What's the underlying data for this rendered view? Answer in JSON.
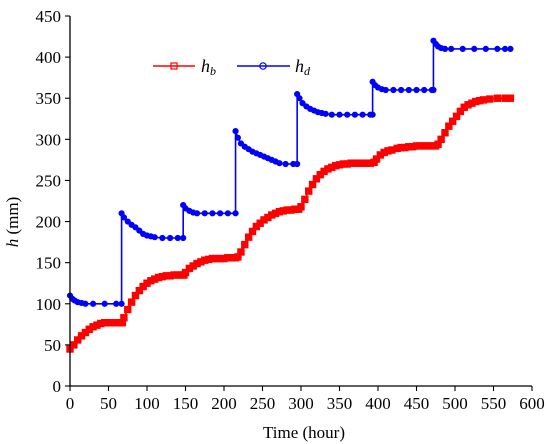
{
  "chart_data": {
    "type": "line",
    "title": "",
    "xlabel": "Time (hour)",
    "ylabel_symbol": "h",
    "ylabel_unit": " (mm)",
    "xlim": [
      0,
      600
    ],
    "ylim": [
      0,
      450
    ],
    "xticks": [
      0,
      50,
      100,
      150,
      200,
      250,
      300,
      350,
      400,
      450,
      500,
      550,
      600
    ],
    "yticks": [
      0,
      50,
      100,
      150,
      200,
      250,
      300,
      350,
      400,
      450
    ],
    "grid": false,
    "legend_position": "top-left",
    "series": [
      {
        "name_main": "h",
        "name_sub": "b",
        "color": "#ff0000",
        "marker": "square",
        "points": [
          [
            0,
            45
          ],
          [
            5,
            50
          ],
          [
            10,
            56
          ],
          [
            15,
            61
          ],
          [
            20,
            65
          ],
          [
            25,
            69
          ],
          [
            30,
            72
          ],
          [
            35,
            74
          ],
          [
            40,
            76
          ],
          [
            45,
            77
          ],
          [
            50,
            77
          ],
          [
            55,
            77
          ],
          [
            60,
            77
          ],
          [
            65,
            77
          ],
          [
            68,
            77
          ],
          [
            70,
            83
          ],
          [
            75,
            93
          ],
          [
            80,
            102
          ],
          [
            85,
            110
          ],
          [
            90,
            116
          ],
          [
            95,
            121
          ],
          [
            100,
            125
          ],
          [
            105,
            128
          ],
          [
            110,
            130
          ],
          [
            115,
            132
          ],
          [
            120,
            133
          ],
          [
            125,
            134
          ],
          [
            130,
            134
          ],
          [
            135,
            135
          ],
          [
            140,
            135
          ],
          [
            145,
            135
          ],
          [
            148,
            135
          ],
          [
            150,
            138
          ],
          [
            155,
            143
          ],
          [
            160,
            146
          ],
          [
            165,
            149
          ],
          [
            170,
            151
          ],
          [
            175,
            153
          ],
          [
            180,
            154
          ],
          [
            185,
            155
          ],
          [
            190,
            155
          ],
          [
            195,
            155
          ],
          [
            200,
            155
          ],
          [
            205,
            156
          ],
          [
            210,
            156
          ],
          [
            215,
            156
          ],
          [
            218,
            157
          ],
          [
            222,
            163
          ],
          [
            227,
            172
          ],
          [
            232,
            181
          ],
          [
            237,
            188
          ],
          [
            242,
            194
          ],
          [
            247,
            198
          ],
          [
            252,
            202
          ],
          [
            257,
            205
          ],
          [
            262,
            208
          ],
          [
            267,
            210
          ],
          [
            272,
            212
          ],
          [
            277,
            213
          ],
          [
            282,
            214
          ],
          [
            287,
            214
          ],
          [
            292,
            215
          ],
          [
            297,
            215
          ],
          [
            300,
            218
          ],
          [
            305,
            227
          ],
          [
            310,
            237
          ],
          [
            315,
            245
          ],
          [
            320,
            252
          ],
          [
            325,
            257
          ],
          [
            330,
            261
          ],
          [
            335,
            264
          ],
          [
            340,
            266
          ],
          [
            345,
            268
          ],
          [
            350,
            269
          ],
          [
            355,
            270
          ],
          [
            360,
            270
          ],
          [
            365,
            271
          ],
          [
            370,
            271
          ],
          [
            375,
            271
          ],
          [
            380,
            271
          ],
          [
            385,
            271
          ],
          [
            390,
            271
          ],
          [
            395,
            272
          ],
          [
            398,
            276
          ],
          [
            403,
            281
          ],
          [
            408,
            284
          ],
          [
            413,
            286
          ],
          [
            418,
            287
          ],
          [
            425,
            289
          ],
          [
            430,
            290
          ],
          [
            435,
            290
          ],
          [
            440,
            291
          ],
          [
            445,
            291
          ],
          [
            450,
            292
          ],
          [
            455,
            292
          ],
          [
            460,
            292
          ],
          [
            465,
            292
          ],
          [
            470,
            292
          ],
          [
            475,
            292
          ],
          [
            478,
            294
          ],
          [
            482,
            300
          ],
          [
            487,
            308
          ],
          [
            492,
            316
          ],
          [
            497,
            322
          ],
          [
            502,
            328
          ],
          [
            507,
            334
          ],
          [
            512,
            339
          ],
          [
            517,
            342
          ],
          [
            522,
            344
          ],
          [
            527,
            346
          ],
          [
            532,
            347
          ],
          [
            537,
            348
          ],
          [
            545,
            349
          ],
          [
            555,
            350
          ],
          [
            565,
            350
          ],
          [
            572,
            350
          ]
        ]
      },
      {
        "name_main": "h",
        "name_sub": "d",
        "color": "#0000ff",
        "marker": "circle",
        "points": [
          [
            0,
            110
          ],
          [
            3,
            106
          ],
          [
            6,
            104
          ],
          [
            10,
            102
          ],
          [
            15,
            101
          ],
          [
            20,
            100
          ],
          [
            30,
            100
          ],
          [
            45,
            100
          ],
          [
            60,
            100
          ],
          [
            67,
            100
          ],
          [
            67,
            210
          ],
          [
            70,
            205
          ],
          [
            75,
            200
          ],
          [
            80,
            196
          ],
          [
            85,
            193
          ],
          [
            90,
            189
          ],
          [
            95,
            185
          ],
          [
            100,
            183
          ],
          [
            105,
            182
          ],
          [
            110,
            181
          ],
          [
            120,
            180
          ],
          [
            130,
            180
          ],
          [
            140,
            180
          ],
          [
            147,
            180
          ],
          [
            147,
            220
          ],
          [
            150,
            216
          ],
          [
            155,
            213
          ],
          [
            160,
            211
          ],
          [
            165,
            210
          ],
          [
            175,
            210
          ],
          [
            185,
            210
          ],
          [
            195,
            210
          ],
          [
            205,
            210
          ],
          [
            215,
            210
          ],
          [
            215,
            310
          ],
          [
            218,
            302
          ],
          [
            222,
            295
          ],
          [
            227,
            291
          ],
          [
            232,
            288
          ],
          [
            237,
            285
          ],
          [
            242,
            283
          ],
          [
            247,
            281
          ],
          [
            252,
            279
          ],
          [
            257,
            277
          ],
          [
            262,
            275
          ],
          [
            267,
            273
          ],
          [
            272,
            271
          ],
          [
            280,
            270
          ],
          [
            290,
            270
          ],
          [
            295,
            270
          ],
          [
            295,
            355
          ],
          [
            298,
            350
          ],
          [
            302,
            344
          ],
          [
            307,
            340
          ],
          [
            312,
            337
          ],
          [
            317,
            335
          ],
          [
            322,
            333
          ],
          [
            327,
            332
          ],
          [
            332,
            331
          ],
          [
            340,
            330
          ],
          [
            350,
            330
          ],
          [
            360,
            330
          ],
          [
            370,
            330
          ],
          [
            380,
            330
          ],
          [
            390,
            330
          ],
          [
            393,
            330
          ],
          [
            393,
            370
          ],
          [
            396,
            366
          ],
          [
            400,
            363
          ],
          [
            405,
            361
          ],
          [
            410,
            360
          ],
          [
            420,
            360
          ],
          [
            430,
            360
          ],
          [
            440,
            360
          ],
          [
            450,
            360
          ],
          [
            460,
            360
          ],
          [
            470,
            360
          ],
          [
            472,
            360
          ],
          [
            472,
            420
          ],
          [
            475,
            416
          ],
          [
            478,
            413
          ],
          [
            482,
            411
          ],
          [
            487,
            410
          ],
          [
            495,
            410
          ],
          [
            510,
            410
          ],
          [
            525,
            410
          ],
          [
            540,
            410
          ],
          [
            555,
            410
          ],
          [
            565,
            410
          ],
          [
            572,
            410
          ]
        ]
      }
    ]
  }
}
